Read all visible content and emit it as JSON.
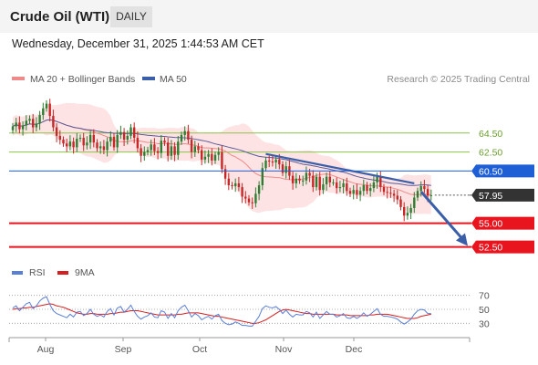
{
  "header": {
    "title": "Crude Oil (WTI)",
    "timeframe": "DAILY",
    "datetime": "Wednesday, December 31, 2025 1:44:53 AM CET"
  },
  "credit": "Research © 2025 Trading Central",
  "colors": {
    "candle_up": "#2e7d32",
    "candle_down": "#c62828",
    "bollinger_fill": "#fde3e3",
    "ma20": "#f08a8a",
    "ma50": "#5b5b9a",
    "resistance": "#1f5fd6",
    "support": "#e8141e",
    "green_level": "#8bc34a",
    "current_price": "#333333",
    "rsi": "#5a7fd6",
    "rsi_ma": "#d81e1e",
    "trendline": "#3a5fa8"
  },
  "chart_data": [
    {
      "type": "candlestick",
      "legend": [
        {
          "name": "MA 20 + Bollinger Bands",
          "color": "#f08a8a"
        },
        {
          "name": "MA 50",
          "color": "#3a5fa8"
        }
      ],
      "legend_position": "top-left",
      "x_labels": [
        "Aug",
        "Sep",
        "Oct",
        "Nov",
        "Dec"
      ],
      "ylim": [
        51.5,
        69.0
      ],
      "price_labels": [
        {
          "value": 64.5,
          "label": "64.50",
          "kind": "level-green"
        },
        {
          "value": 62.5,
          "label": "62.50",
          "kind": "level-green"
        },
        {
          "value": 60.5,
          "label": "60.50",
          "kind": "resistance"
        },
        {
          "value": 57.95,
          "label": "57.95",
          "kind": "current"
        },
        {
          "value": 55.0,
          "label": "55.00",
          "kind": "support"
        },
        {
          "value": 52.5,
          "label": "52.50",
          "kind": "support"
        }
      ],
      "close": [
        65.2,
        65.6,
        64.9,
        65.3,
        65.8,
        66.0,
        65.1,
        65.5,
        66.4,
        67.1,
        67.6,
        66.3,
        65.1,
        64.2,
        63.8,
        63.4,
        63.1,
        63.6,
        63.0,
        63.9,
        64.0,
        63.2,
        63.5,
        64.3,
        63.5,
        62.9,
        63.1,
        62.7,
        63.6,
        64.1,
        63.0,
        64.3,
        64.6,
        63.8,
        64.2,
        65.1,
        64.0,
        62.9,
        62.1,
        62.5,
        62.7,
        63.3,
        62.6,
        62.4,
        63.7,
        63.5,
        62.1,
        63.1,
        62.2,
        63.6,
        64.3,
        64.7,
        63.8,
        62.5,
        63.1,
        62.7,
        61.7,
        62.0,
        62.3,
        61.6,
        62.2,
        62.5,
        60.7,
        59.7,
        59.0,
        58.9,
        59.2,
        58.8,
        57.8,
        57.6,
        57.2,
        57.1,
        58.1,
        59.0,
        60.8,
        61.6,
        61.5,
        61.4,
        61.7,
        61.2,
        60.3,
        61.0,
        60.0,
        59.2,
        59.7,
        59.5,
        59.5,
        60.3,
        60.0,
        58.8,
        59.9,
        58.5,
        59.1,
        59.9,
        59.3,
        59.3,
        58.7,
        58.8,
        59.2,
        58.4,
        58.1,
        58.5,
        58.0,
        58.4,
        59.0,
        58.4,
        58.7,
        59.3,
        59.9,
        58.8,
        58.3,
        58.2,
        58.1,
        57.9,
        57.5,
        56.7,
        55.8,
        56.1,
        56.6,
        57.7,
        58.4,
        58.9,
        58.6,
        57.9,
        57.95
      ],
      "open": [
        64.8,
        65.2,
        65.6,
        64.9,
        65.3,
        65.8,
        66.0,
        65.1,
        65.5,
        66.4,
        67.1,
        67.6,
        66.3,
        65.1,
        64.2,
        63.8,
        63.4,
        63.1,
        63.6,
        63.0,
        63.9,
        64.0,
        63.2,
        63.5,
        64.3,
        63.5,
        62.9,
        63.1,
        62.7,
        63.6,
        64.1,
        63.0,
        64.3,
        64.6,
        63.8,
        64.2,
        65.1,
        64.0,
        62.9,
        62.1,
        62.5,
        62.7,
        63.3,
        62.6,
        62.4,
        63.7,
        63.5,
        62.1,
        63.1,
        62.2,
        63.6,
        64.3,
        64.7,
        63.8,
        62.5,
        63.1,
        62.7,
        61.7,
        62.0,
        62.3,
        61.6,
        62.2,
        62.5,
        60.7,
        59.7,
        59.0,
        58.9,
        59.2,
        58.8,
        57.8,
        57.6,
        57.2,
        57.1,
        58.1,
        59.0,
        60.8,
        61.6,
        61.5,
        61.4,
        61.7,
        61.2,
        60.3,
        61.0,
        60.0,
        59.2,
        59.7,
        59.5,
        59.5,
        60.3,
        60.0,
        58.8,
        59.9,
        58.5,
        59.1,
        59.9,
        59.3,
        59.3,
        58.7,
        58.8,
        59.2,
        58.4,
        58.1,
        58.5,
        58.0,
        58.4,
        59.0,
        58.4,
        58.7,
        59.3,
        59.9,
        58.8,
        58.3,
        58.2,
        58.1,
        57.9,
        57.5,
        56.7,
        55.8,
        56.1,
        56.6,
        57.7,
        58.4,
        58.9,
        58.6,
        57.9
      ],
      "trendline": {
        "from": {
          "index": 75,
          "value": 62.3
        },
        "to": {
          "index": 119,
          "value": 59.2
        }
      },
      "forecast_arrow": {
        "from": {
          "index": 120,
          "value": 58.3
        },
        "to": {
          "index": 128,
          "value": 52.6
        }
      }
    },
    {
      "type": "line",
      "indicator": "RSI",
      "legend": [
        {
          "name": "RSI",
          "color": "#5a7fd6"
        },
        {
          "name": "9MA",
          "color": "#d81e1e"
        }
      ],
      "legend_position": "top-left",
      "ylim": [
        20,
        80
      ],
      "y_ticks": [
        70,
        50,
        30
      ],
      "series": [
        {
          "name": "RSI",
          "values": [
            52,
            55,
            48,
            53,
            58,
            60,
            51,
            55,
            62,
            66,
            68,
            57,
            48,
            44,
            42,
            40,
            38,
            43,
            39,
            46,
            47,
            41,
            44,
            50,
            43,
            40,
            42,
            39,
            47,
            51,
            42,
            52,
            54,
            46,
            50,
            56,
            47,
            40,
            36,
            39,
            41,
            45,
            39,
            38,
            48,
            46,
            37,
            44,
            38,
            48,
            53,
            56,
            48,
            39,
            44,
            41,
            35,
            38,
            40,
            36,
            41,
            43,
            34,
            30,
            28,
            29,
            32,
            30,
            27,
            27,
            26,
            26,
            33,
            40,
            51,
            55,
            53,
            52,
            54,
            50,
            44,
            49,
            43,
            39,
            43,
            42,
            42,
            47,
            45,
            39,
            46,
            37,
            42,
            47,
            43,
            43,
            39,
            41,
            44,
            38,
            37,
            40,
            37,
            40,
            45,
            40,
            43,
            47,
            51,
            43,
            40,
            40,
            39,
            38,
            36,
            32,
            29,
            32,
            36,
            43,
            48,
            50,
            49,
            44,
            44
          ]
        },
        {
          "name": "9MA",
          "values": [
            50,
            51,
            51,
            52,
            52,
            53,
            53,
            54,
            55,
            56,
            57,
            58,
            57,
            55,
            54,
            53,
            51,
            49,
            47,
            45,
            44,
            43,
            43,
            44,
            44,
            43,
            43,
            43,
            43,
            44,
            44,
            45,
            46,
            46,
            47,
            48,
            48,
            48,
            47,
            46,
            45,
            44,
            43,
            42,
            42,
            42,
            42,
            42,
            42,
            43,
            43,
            44,
            45,
            45,
            45,
            45,
            44,
            43,
            42,
            41,
            40,
            40,
            39,
            38,
            37,
            36,
            35,
            34,
            33,
            32,
            31,
            30,
            30,
            31,
            33,
            35,
            38,
            41,
            44,
            47,
            49,
            50,
            49,
            48,
            47,
            46,
            45,
            44,
            44,
            43,
            43,
            43,
            43,
            43,
            43,
            43,
            42,
            42,
            42,
            42,
            41,
            41,
            41,
            41,
            41,
            41,
            42,
            42,
            43,
            43,
            43,
            43,
            42,
            41,
            40,
            39,
            38,
            37,
            37,
            37,
            38,
            40,
            41,
            42,
            43
          ]
        }
      ]
    }
  ]
}
